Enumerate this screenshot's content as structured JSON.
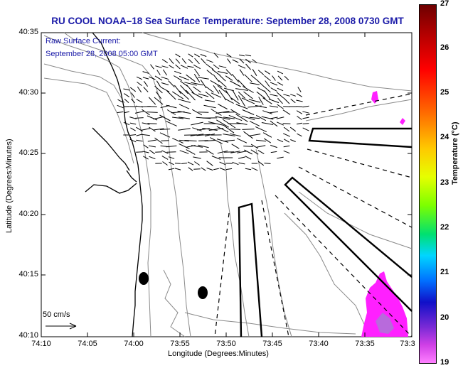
{
  "title": "RU COOL  NOAA–18  Sea Surface Temperature:  September 28, 2008 0730 GMT",
  "legend": {
    "line1": "Raw Surface Current:",
    "line2": "September 28, 2008 05:00 GMT",
    "scale_label": "50 cm/s"
  },
  "axes": {
    "x_title": "Longitude (Degrees:Minutes)",
    "y_title": "Latitude (Degrees:Minutes)",
    "x_ticks": [
      "74:10",
      "74:05",
      "74:00",
      "73:55",
      "73:50",
      "73:45",
      "73:40",
      "73:35",
      "73:3"
    ],
    "y_ticks": [
      "40:35",
      "40:30",
      "40:25",
      "40:20",
      "40:15",
      "40:10"
    ]
  },
  "colorbar": {
    "title": "Temperature (°C)",
    "ticks": [
      "27",
      "26",
      "25",
      "24",
      "23",
      "22",
      "21",
      "20",
      "19"
    ],
    "range": [
      19,
      27
    ]
  },
  "colors": {
    "title": "#1a1aa8",
    "warm_patch": "#ff20ff",
    "coast": "#000000",
    "contour": "#8a8a8a"
  }
}
